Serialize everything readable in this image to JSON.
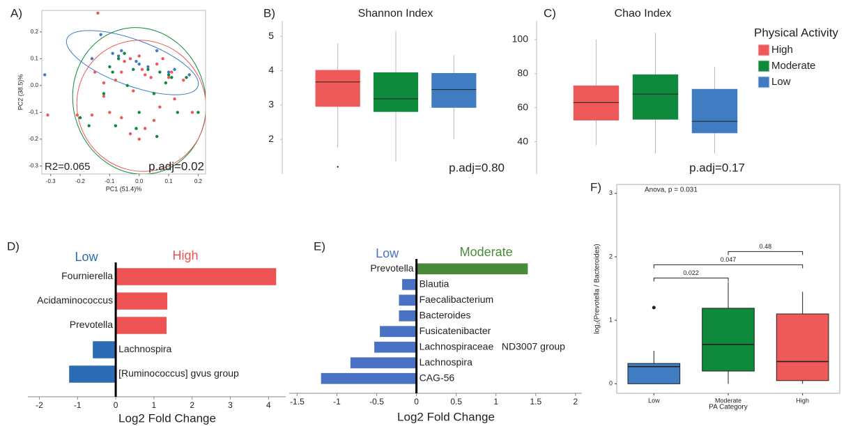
{
  "chart_data": [
    {
      "type": "scatter",
      "label": "A)",
      "xlabel": "PC1 (51.4)%",
      "ylabel": "PC2 (38.5)%",
      "annotations": [
        "R2=0.065",
        "p.adj=0.02"
      ],
      "xlim": [
        -0.33,
        0.225
      ],
      "ylim": [
        -0.33,
        0.28
      ],
      "xticks": [
        -0.3,
        -0.2,
        -0.1,
        {
          "value": 0,
          "label": "0.0"
        },
        0.1,
        0.2
      ],
      "yticks": [
        -0.3,
        -0.2,
        -0.1,
        {
          "value": 0,
          "label": "0.0"
        },
        0.1,
        0.2
      ],
      "series": [
        {
          "color": "#ee5a5a",
          "x": [
            -0.14,
            -0.31,
            -0.21,
            -0.16,
            -0.12,
            -0.1,
            -0.08,
            -0.06,
            -0.05,
            -0.03,
            0.0,
            0.01,
            0.02,
            0.04,
            0.06,
            0.08,
            0.1,
            0.12,
            0.15,
            0.18,
            0.05,
            0.02,
            0.0,
            -0.12,
            -0.15,
            -0.06,
            -0.03,
            0.11,
            -0.02,
            0.07
          ],
          "y": [
            0.27,
            -0.11,
            -0.11,
            -0.11,
            -0.04,
            -0.1,
            0.02,
            0.05,
            0.09,
            0.1,
            0.11,
            0.06,
            0.04,
            0.03,
            0.08,
            0.1,
            0.03,
            -0.05,
            0.02,
            -0.1,
            -0.13,
            -0.16,
            -0.2,
            0.01,
            0.05,
            -0.12,
            -0.18,
            0.05,
            -0.02,
            -0.08
          ]
        },
        {
          "color": "#0f8a3c",
          "x": [
            -0.2,
            -0.17,
            -0.1,
            -0.09,
            -0.07,
            -0.05,
            -0.04,
            -0.02,
            -0.01,
            0.0,
            0.03,
            0.05,
            0.07,
            0.09,
            0.1,
            0.13,
            0.16,
            0.2,
            -0.08,
            0.06,
            -0.12,
            0.11
          ],
          "y": [
            -0.12,
            -0.15,
            0.07,
            0.05,
            0.1,
            0.12,
            0.0,
            0.06,
            -0.16,
            -0.1,
            0.06,
            -0.03,
            0.05,
            0.01,
            0.04,
            -0.1,
            0.03,
            -0.1,
            -0.15,
            -0.19,
            -0.03,
            0.03
          ]
        },
        {
          "color": "#3f7cc1",
          "x": [
            -0.13,
            -0.32,
            -0.16,
            -0.09,
            -0.07,
            -0.06,
            0.0,
            -0.01,
            0.03,
            0.06,
            0.1,
            0.17,
            0.12
          ],
          "y": [
            0.19,
            0.04,
            0.1,
            0.12,
            0.11,
            0.13,
            0.08,
            0.09,
            0.07,
            0.13,
            0.05,
            0.04,
            0.06
          ]
        }
      ]
    },
    {
      "type": "box",
      "label": "B)",
      "title": "Shannon Index",
      "annotation": "p.adj=0.80",
      "ylim": [
        0.99,
        5.45
      ],
      "yticks": [
        2,
        3,
        4,
        5
      ],
      "boxes": [
        {
          "color": "#ee5a5a",
          "whislo": 1.75,
          "q1": 2.95,
          "med": 3.67,
          "q3": 4.02,
          "whishi": 4.8,
          "outliers": [
            1.2
          ]
        },
        {
          "color": "#0f8a3c",
          "whislo": 1.35,
          "q1": 2.8,
          "med": 3.18,
          "q3": 3.95,
          "whishi": 5.15
        },
        {
          "color": "#3f7cc1",
          "whislo": 2.0,
          "q1": 2.92,
          "med": 3.45,
          "q3": 3.93,
          "whishi": 4.45
        }
      ]
    },
    {
      "type": "box",
      "label": "C)",
      "title": "Chao Index",
      "annotation": "p.adj=0.17",
      "ylim": [
        21,
        111
      ],
      "yticks": [
        40,
        60,
        80,
        100
      ],
      "legend": {
        "title": "Physical Activity"
      },
      "boxes": [
        {
          "name": "High",
          "color": "#ee5a5a",
          "whislo": 38,
          "q1": 52.5,
          "med": 63,
          "q3": 73,
          "whishi": 100
        },
        {
          "name": "Moderate",
          "color": "#0f8a3c",
          "whislo": 33,
          "q1": 53,
          "med": 68,
          "q3": 79.5,
          "whishi": 104
        },
        {
          "name": "Low",
          "color": "#3f7cc1",
          "whislo": 33,
          "q1": 45,
          "med": 52,
          "q3": 71,
          "whishi": 84
        }
      ]
    },
    {
      "type": "barh",
      "label": "D)",
      "xlabel": "Log2 Fold Change",
      "left_label": "Low",
      "right_label": "High",
      "negative_color": "#2b6cb5",
      "positive_color": "#ee5353",
      "xlim": [
        -2.3,
        4.45
      ],
      "xticks": [
        -2,
        -1,
        0,
        1,
        2,
        3,
        4
      ],
      "categories": [
        "Fournierella",
        "Acidaminococcus",
        "Prevotella",
        "Lachnospira",
        "[Ruminococcus] gvus group"
      ],
      "values": [
        4.2,
        1.35,
        1.33,
        -0.6,
        -1.22
      ]
    },
    {
      "type": "barh",
      "label": "E)",
      "xlabel": "Log2 Fold Change",
      "left_label": "Low",
      "right_label": "Moderate",
      "negative_color": "#4a72c4",
      "positive_color": "#4a8a3a",
      "xlim": [
        -1.6,
        2.08
      ],
      "xticks": [
        -1.5,
        -1,
        -0.5,
        0,
        0.5,
        1,
        1.5,
        2
      ],
      "categories": [
        "Prevotella",
        "Blautia",
        "Faecalibacterium",
        "Bacteroides",
        "Fusicatenibacter",
        "Lachnospiraceae   ND3007 group",
        "Lachnospira",
        "CAG-56"
      ],
      "values": [
        1.4,
        -0.18,
        -0.22,
        -0.22,
        -0.46,
        -0.53,
        -0.83,
        -1.2
      ]
    },
    {
      "type": "box",
      "label": "F)",
      "xlabel": "PA Category",
      "ylabel": "log₂(Prevotella / Bacteroides)",
      "annotation": "Anova, p = 0.031",
      "ylim": [
        -0.15,
        3.14
      ],
      "yticks": [
        0,
        1,
        2,
        3
      ],
      "categories": [
        "Low",
        "Moderate",
        "High"
      ],
      "boxes": [
        {
          "color": "#3f7cc1",
          "whislo": 0,
          "q1": 0,
          "med": 0.27,
          "q3": 0.32,
          "whishi": 0.52,
          "outliers": [
            1.2
          ]
        },
        {
          "color": "#0f8a3c",
          "whislo": 0,
          "q1": 0.2,
          "med": 0.62,
          "q3": 1.19,
          "whishi": 1.6
        },
        {
          "color": "#ee5a5a",
          "whislo": 0,
          "q1": 0.05,
          "med": 0.35,
          "q3": 1.1,
          "whishi": 1.45
        }
      ],
      "comparisons": [
        {
          "groups": [
            0,
            1
          ],
          "p": 0.022
        },
        {
          "groups": [
            0,
            2
          ],
          "p": 0.047
        },
        {
          "groups": [
            1,
            2
          ],
          "p": 0.48
        }
      ]
    }
  ]
}
